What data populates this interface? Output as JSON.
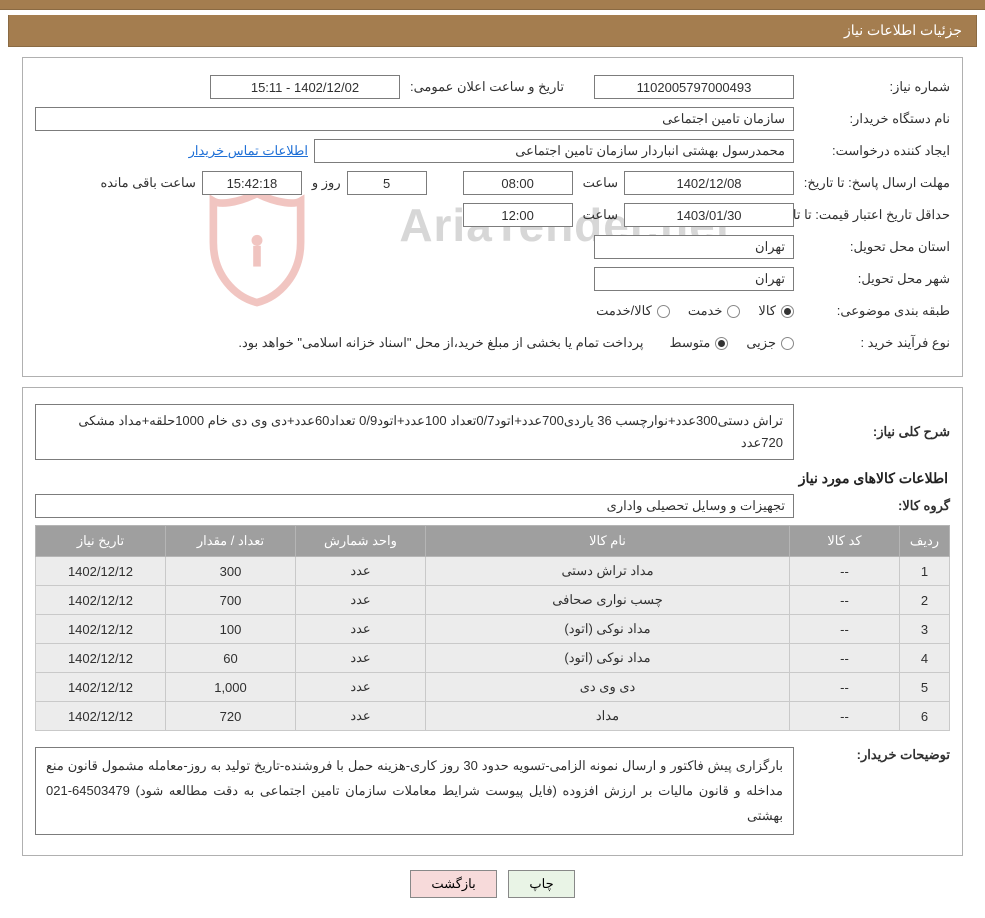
{
  "header": {
    "title": "جزئیات اطلاعات نیاز"
  },
  "top": {
    "need_no_label": "شماره نیاز:",
    "need_no": "1102005797000493",
    "announce_label": "تاریخ و ساعت اعلان عمومی:",
    "announce_value": "1402/12/02 - 15:11",
    "org_label": "نام دستگاه خریدار:",
    "org_value": "سازمان تامین اجتماعی",
    "creator_label": "ایجاد کننده درخواست:",
    "creator_value": "محمدرسول بهشتی انباردار سازمان تامین اجتماعی",
    "contact_link": "اطلاعات تماس خریدار",
    "deadline_label": "مهلت ارسال پاسخ: تا تاریخ:",
    "deadline_date": "1402/12/08",
    "time_word": "ساعت",
    "deadline_time": "08:00",
    "days_remain": "5",
    "days_word_and": "روز و",
    "countdown": "15:42:18",
    "remaining_word": "ساعت باقی مانده",
    "min_validity_label": "حداقل تاریخ اعتبار قیمت: تا تاریخ:",
    "min_validity_date": "1403/01/30",
    "min_validity_time": "12:00",
    "province_label": "استان محل تحویل:",
    "province_value": "تهران",
    "city_label": "شهر محل تحویل:",
    "city_value": "تهران",
    "category_label": "طبقه بندی موضوعی:",
    "cat_opts": {
      "goods": "کالا",
      "service": "خدمت",
      "both": "کالا/خدمت"
    },
    "cat_selected": "goods",
    "purchase_type_label": "نوع فرآیند خرید :",
    "purchase_opts": {
      "minor": "جزیی",
      "medium": "متوسط"
    },
    "purchase_selected": "medium",
    "purchase_note": "پرداخت تمام یا بخشی از مبلغ خرید،از محل \"اسناد خزانه اسلامی\" خواهد بود."
  },
  "need": {
    "overview_label": "شرح کلی نیاز:",
    "overview_value": "تراش دستی300عدد+نوارچسب 36 یاردی700عدد+اتود0/7تعداد 100عدد+اتود0/9 تعداد60عدد+دی وی دی خام 1000حلقه+مداد مشکی 720عدد",
    "section_title": "اطلاعات کالاهای مورد نیاز",
    "group_label": "گروه کالا:",
    "group_value": "تجهیزات و وسایل تحصیلی واداری"
  },
  "table": {
    "columns": [
      "ردیف",
      "کد کالا",
      "نام کالا",
      "واحد شمارش",
      "تعداد / مقدار",
      "تاریخ نیاز"
    ],
    "col_widths": [
      "50px",
      "110px",
      "auto",
      "130px",
      "130px",
      "130px"
    ],
    "rows": [
      [
        "1",
        "--",
        "مداد تراش دستی",
        "عدد",
        "300",
        "1402/12/12"
      ],
      [
        "2",
        "--",
        "چسب نواری صحافی",
        "عدد",
        "700",
        "1402/12/12"
      ],
      [
        "3",
        "--",
        "مداد نوکی (اتود)",
        "عدد",
        "100",
        "1402/12/12"
      ],
      [
        "4",
        "--",
        "مداد نوکی (اتود)",
        "عدد",
        "60",
        "1402/12/12"
      ],
      [
        "5",
        "--",
        "دی وی دی",
        "عدد",
        "1,000",
        "1402/12/12"
      ],
      [
        "6",
        "--",
        "مداد",
        "عدد",
        "720",
        "1402/12/12"
      ]
    ]
  },
  "buyer_note": {
    "label": "توضیحات خریدار:",
    "text": "بارگزاری پیش فاکتور و ارسال نمونه الزامی-تسویه حدود 30 روز کاری-هزینه حمل با فروشنده-تاریخ تولید به روز-معامله مشمول قانون منع مداخله و قانون مالیات بر ارزش افزوده (فایل پیوست شرایط معاملات سازمان تامین اجتماعی به دقت مطالعه شود) 64503479-021 بهشتی"
  },
  "buttons": {
    "print": "چاپ",
    "back": "بازگشت"
  },
  "watermark": {
    "text": "AriaTender.net",
    "shield_color": "#d65a4d"
  }
}
